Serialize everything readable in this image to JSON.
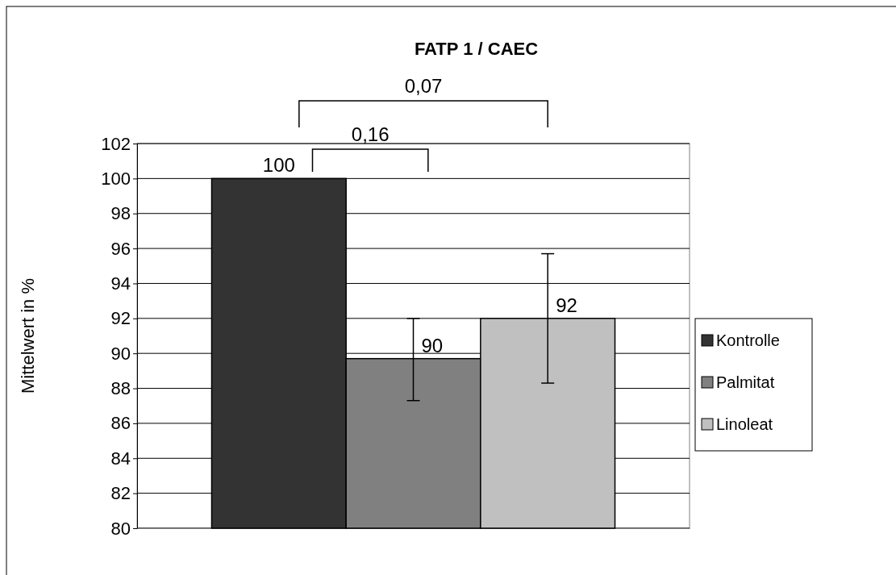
{
  "chart_data": {
    "type": "bar",
    "title": "FATP 1 / CAEC",
    "ylabel": "Mittelwert in %",
    "categories": [
      null
    ],
    "series": [
      {
        "name": "Kontrolle",
        "color": "#333333",
        "values": [
          100
        ],
        "value_labels": [
          "100"
        ]
      },
      {
        "name": "Palmitat",
        "color": "#808080",
        "values": [
          89.7
        ],
        "value_labels": [
          "90"
        ],
        "errors": [
          [
            87.3,
            92.0
          ]
        ]
      },
      {
        "name": "Linoleat",
        "color": "#c0c0c0",
        "values": [
          92
        ],
        "value_labels": [
          "92"
        ],
        "errors": [
          [
            88.3,
            95.7
          ]
        ]
      }
    ],
    "ylim": [
      80,
      102
    ],
    "yticks": [
      80,
      82,
      84,
      86,
      88,
      90,
      92,
      94,
      96,
      98,
      100,
      102
    ],
    "grid": "y",
    "legend": "right",
    "annotations": [
      "0,16",
      "0,07"
    ]
  }
}
